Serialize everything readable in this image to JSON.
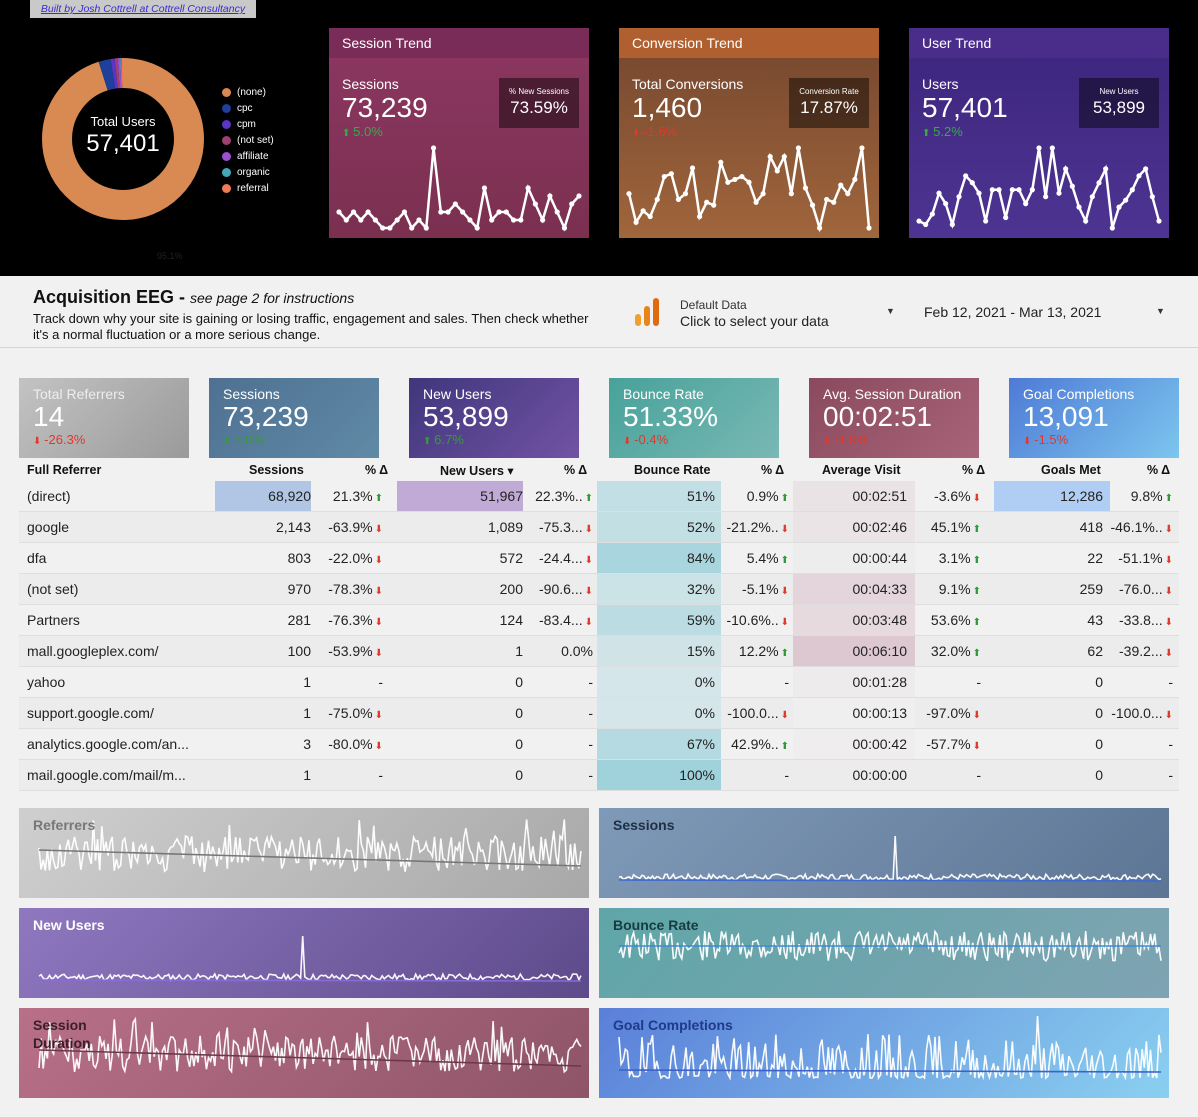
{
  "credit": "Built by Josh Cottrell at Cottrell Consultancy",
  "donut": {
    "label": "Total Users",
    "value": "57,401",
    "main_pct": "95.1%",
    "segments": [
      {
        "name": "(none)",
        "pct": 95.1,
        "color": "#d98a52"
      },
      {
        "name": "cpc",
        "pct": 2.4,
        "color": "#1e3f9a"
      },
      {
        "name": "cpm",
        "pct": 0.8,
        "color": "#5a35c8"
      },
      {
        "name": "(not set)",
        "pct": 0.6,
        "color": "#a04070"
      },
      {
        "name": "affiliate",
        "pct": 0.5,
        "color": "#9d4fd0"
      },
      {
        "name": "organic",
        "pct": 0.3,
        "color": "#45a8b8"
      },
      {
        "name": "referral",
        "pct": 0.3,
        "color": "#f07a55"
      }
    ]
  },
  "trends": [
    {
      "title": "Session Trend",
      "metric": "Sessions",
      "value": "73,239",
      "delta": "5.0%",
      "dir": "up",
      "sub_label": "% New Sessions",
      "sub_value": "73.59%",
      "head": "#7a2c58",
      "top": "#8a3660",
      "bottom": "#7b3050",
      "series": [
        10,
        9,
        10,
        9,
        10,
        9,
        8,
        8,
        9,
        10,
        8,
        9,
        8,
        18,
        10,
        10,
        11,
        10,
        9,
        8,
        13,
        9,
        10,
        10,
        9,
        9,
        13,
        11,
        9,
        12,
        10,
        8,
        11,
        12
      ]
    },
    {
      "title": "Conversion Trend",
      "metric": "Total Conversions",
      "value": "1,460",
      "delta": "-1.6%",
      "dir": "down",
      "sub_label": "Conversion Rate",
      "sub_value": "17.87%",
      "head": "#b06030",
      "top": "#7a4a30",
      "bottom": "#a0663c",
      "series": [
        14,
        4,
        8,
        6,
        12,
        20,
        21,
        12,
        14,
        23,
        6,
        11,
        10,
        25,
        18,
        19,
        20,
        18,
        11,
        14,
        27,
        22,
        27,
        14,
        30,
        16,
        10,
        2,
        12,
        11,
        17,
        14,
        19,
        30,
        2
      ]
    },
    {
      "title": "User Trend",
      "metric": "Users",
      "value": "57,401",
      "delta": "5.2%",
      "dir": "up",
      "sub_label": "New Users",
      "sub_value": "53,899",
      "head": "#4a2c8a",
      "top": "#3e2780",
      "bottom": "#4e3492",
      "series": [
        11,
        10,
        13,
        19,
        16,
        10,
        18,
        24,
        22,
        19,
        11,
        20,
        20,
        12,
        20,
        20,
        16,
        20,
        32,
        18,
        32,
        19,
        26,
        21,
        15,
        11,
        18,
        22,
        26,
        9,
        15,
        17,
        20,
        24,
        26,
        18,
        11
      ]
    }
  ],
  "header": {
    "title": "Acquisition EEG",
    "title_note": "see page 2 for instructions",
    "description": "Track down why your site is gaining or losing traffic, engagement and sales. Then check whether it's a normal fluctuation or a more serious change.",
    "data_source_name": "Default Data",
    "data_source_link": "Click to select your data",
    "date_range": "Feb 12, 2021 - Mar 13, 2021"
  },
  "kpis": [
    {
      "label": "Total Referrers",
      "value": "14",
      "delta": "-26.3%",
      "dir": "down",
      "c1": "#c3c3c3",
      "c2": "#9a9a9a"
    },
    {
      "label": "Sessions",
      "value": "73,239",
      "delta": "5.0%",
      "dir": "up",
      "c1": "#4f7092",
      "c2": "#5f8aa6"
    },
    {
      "label": "New Users",
      "value": "53,899",
      "delta": "6.7%",
      "dir": "up",
      "c1": "#3f367c",
      "c2": "#7253a4"
    },
    {
      "label": "Bounce Rate",
      "value": "51.33%",
      "delta": "-0.4%",
      "dir": "down",
      "c1": "#47a29a",
      "c2": "#7ab8b4"
    },
    {
      "label": "Avg. Session Duration",
      "value": "00:02:51",
      "delta": "-1.9%",
      "dir": "down",
      "c1": "#8a4a5e",
      "c2": "#a86478"
    },
    {
      "label": "Goal Completions",
      "value": "13,091",
      "delta": "-1.5%",
      "dir": "down",
      "c1": "#4e7ad6",
      "c2": "#7cc6ee"
    }
  ],
  "table": {
    "headers": {
      "referrer": "Full Referrer",
      "sessions": "Sessions",
      "sessions_d": "% Δ",
      "new_users": "New Users ▾",
      "new_users_d": "% Δ",
      "bounce": "Bounce Rate",
      "bounce_d": "% Δ",
      "avg": "Average Visit",
      "avg_d": "% Δ",
      "goals": "Goals Met",
      "goals_d": "% Δ"
    },
    "rows": [
      {
        "ref": "(direct)",
        "s": "68,920",
        "sd": "21.3%",
        "sdd": "up",
        "nu": "51,967",
        "nud": "22.3%..",
        "nudd": "up",
        "b": "51%",
        "bd": "0.9%",
        "bdd": "up",
        "a": "00:02:51",
        "ad": "-3.6%",
        "add": "down",
        "g": "12,286",
        "gd": "9.8%",
        "gdd": "up",
        "hs": 1,
        "hnu": 1,
        "hb": 0.34,
        "ha": 0.24,
        "hg": 1
      },
      {
        "ref": "google",
        "s": "2,143",
        "sd": "-63.9%",
        "sdd": "down",
        "nu": "1,089",
        "nud": "-75.3...",
        "nudd": "down",
        "b": "52%",
        "bd": "-21.2%..",
        "bdd": "down",
        "a": "00:02:46",
        "ad": "45.1%",
        "add": "up",
        "g": "418",
        "gd": "-46.1%..",
        "gdd": "down",
        "hs": 0,
        "hnu": 0,
        "hb": 0.35,
        "ha": 0.23,
        "hg": 0
      },
      {
        "ref": "dfa",
        "s": "803",
        "sd": "-22.0%",
        "sdd": "down",
        "nu": "572",
        "nud": "-24.4...",
        "nudd": "down",
        "b": "84%",
        "bd": "5.4%",
        "bdd": "up",
        "a": "00:00:44",
        "ad": "3.1%",
        "add": "up",
        "g": "22",
        "gd": "-51.1%",
        "gdd": "down",
        "hs": 0,
        "hnu": 0,
        "hb": 0.82,
        "ha": 0.06,
        "hg": 0
      },
      {
        "ref": "(not set)",
        "s": "970",
        "sd": "-78.3%",
        "sdd": "down",
        "nu": "200",
        "nud": "-90.6...",
        "nudd": "down",
        "b": "32%",
        "bd": "-5.1%",
        "bdd": "down",
        "a": "00:04:33",
        "ad": "9.1%",
        "add": "up",
        "g": "259",
        "gd": "-76.0...",
        "gdd": "down",
        "hs": 0,
        "hnu": 0,
        "hb": 0.18,
        "ha": 0.5,
        "hg": 0
      },
      {
        "ref": "Partners",
        "s": "281",
        "sd": "-76.3%",
        "sdd": "down",
        "nu": "124",
        "nud": "-83.4...",
        "nudd": "down",
        "b": "59%",
        "bd": "-10.6%..",
        "bdd": "down",
        "a": "00:03:48",
        "ad": "53.6%",
        "add": "up",
        "g": "43",
        "gd": "-33.8...",
        "gdd": "down",
        "hs": 0,
        "hnu": 0,
        "hb": 0.48,
        "ha": 0.4,
        "hg": 0
      },
      {
        "ref": "mall.googleplex.com/",
        "s": "100",
        "sd": "-53.9%",
        "sdd": "down",
        "nu": "1",
        "nud": "0.0%",
        "nudd": "",
        "b": "15%",
        "bd": "12.2%",
        "bdd": "up",
        "a": "00:06:10",
        "ad": "32.0%",
        "add": "up",
        "g": "62",
        "gd": "-39.2...",
        "gdd": "down",
        "hs": 0,
        "hnu": 0,
        "hb": 0.08,
        "ha": 0.75,
        "hg": 0
      },
      {
        "ref": "yahoo",
        "s": "1",
        "sd": "-",
        "sdd": "",
        "nu": "0",
        "nud": "-",
        "nudd": "",
        "b": "0%",
        "bd": "-",
        "bdd": "",
        "a": "00:01:28",
        "ad": "-",
        "add": "",
        "g": "0",
        "gd": "-",
        "gdd": "",
        "hs": 0,
        "hnu": 0,
        "hb": 0,
        "ha": 0.1,
        "hg": 0
      },
      {
        "ref": "support.google.com/",
        "s": "1",
        "sd": "-75.0%",
        "sdd": "down",
        "nu": "0",
        "nud": "-",
        "nudd": "",
        "b": "0%",
        "bd": "-100.0...",
        "bdd": "down",
        "a": "00:00:13",
        "ad": "-97.0%",
        "add": "down",
        "g": "0",
        "gd": "-100.0...",
        "gdd": "down",
        "hs": 0,
        "hnu": 0,
        "hb": 0,
        "ha": 0.02,
        "hg": 0
      },
      {
        "ref": "analytics.google.com/an...",
        "s": "3",
        "sd": "-80.0%",
        "sdd": "down",
        "nu": "0",
        "nud": "-",
        "nudd": "",
        "b": "67%",
        "bd": "42.9%..",
        "bdd": "up",
        "a": "00:00:42",
        "ad": "-57.7%",
        "add": "down",
        "g": "0",
        "gd": "-",
        "gdd": "",
        "hs": 0,
        "hnu": 0,
        "hb": 0.6,
        "ha": 0.05,
        "hg": 0
      },
      {
        "ref": "mail.google.com/mail/m...",
        "s": "1",
        "sd": "-",
        "sdd": "",
        "nu": "0",
        "nud": "-",
        "nudd": "",
        "b": "100%",
        "bd": "-",
        "bdd": "",
        "a": "00:00:00",
        "ad": "-",
        "add": "",
        "g": "0",
        "gd": "-",
        "gdd": "",
        "hs": 0,
        "hnu": 0,
        "hb": 1,
        "ha": 0,
        "hg": 0
      }
    ]
  },
  "tiles": [
    {
      "title": "Referrers",
      "c1": "#cfcfcf",
      "c2": "#a8a8a8",
      "text": "#777777",
      "trend": "#777777",
      "mode": "noisy",
      "seed": 3
    },
    {
      "title": "Sessions",
      "c1": "#7f9ab8",
      "c2": "#5d7594",
      "text": "#1f2f45",
      "trend": "#3f6ad0",
      "mode": "flat",
      "seed": 7
    },
    {
      "title": "New Users",
      "c1": "#8f78c0",
      "c2": "#5d4a8a",
      "text": "#ffffff",
      "trend": "#8a6ad8",
      "mode": "flat",
      "seed": 11
    },
    {
      "title": "Bounce Rate",
      "c1": "#5fa6a8",
      "c2": "#7fa3b2",
      "text": "#173c40",
      "trend": "#3f8ad0",
      "mode": "band",
      "seed": 13
    },
    {
      "title": "Session\nDuration",
      "c1": "#b87088",
      "c2": "#8e5468",
      "text": "#3a1e2a",
      "trend": "#6a3a4a",
      "mode": "noisy",
      "seed": 17
    },
    {
      "title": "Goal Completions",
      "c1": "#5a7fd8",
      "c2": "#8ad0f0",
      "text": "#1f3a8a",
      "trend": "#3f62c8",
      "mode": "spiky",
      "seed": 19
    }
  ]
}
